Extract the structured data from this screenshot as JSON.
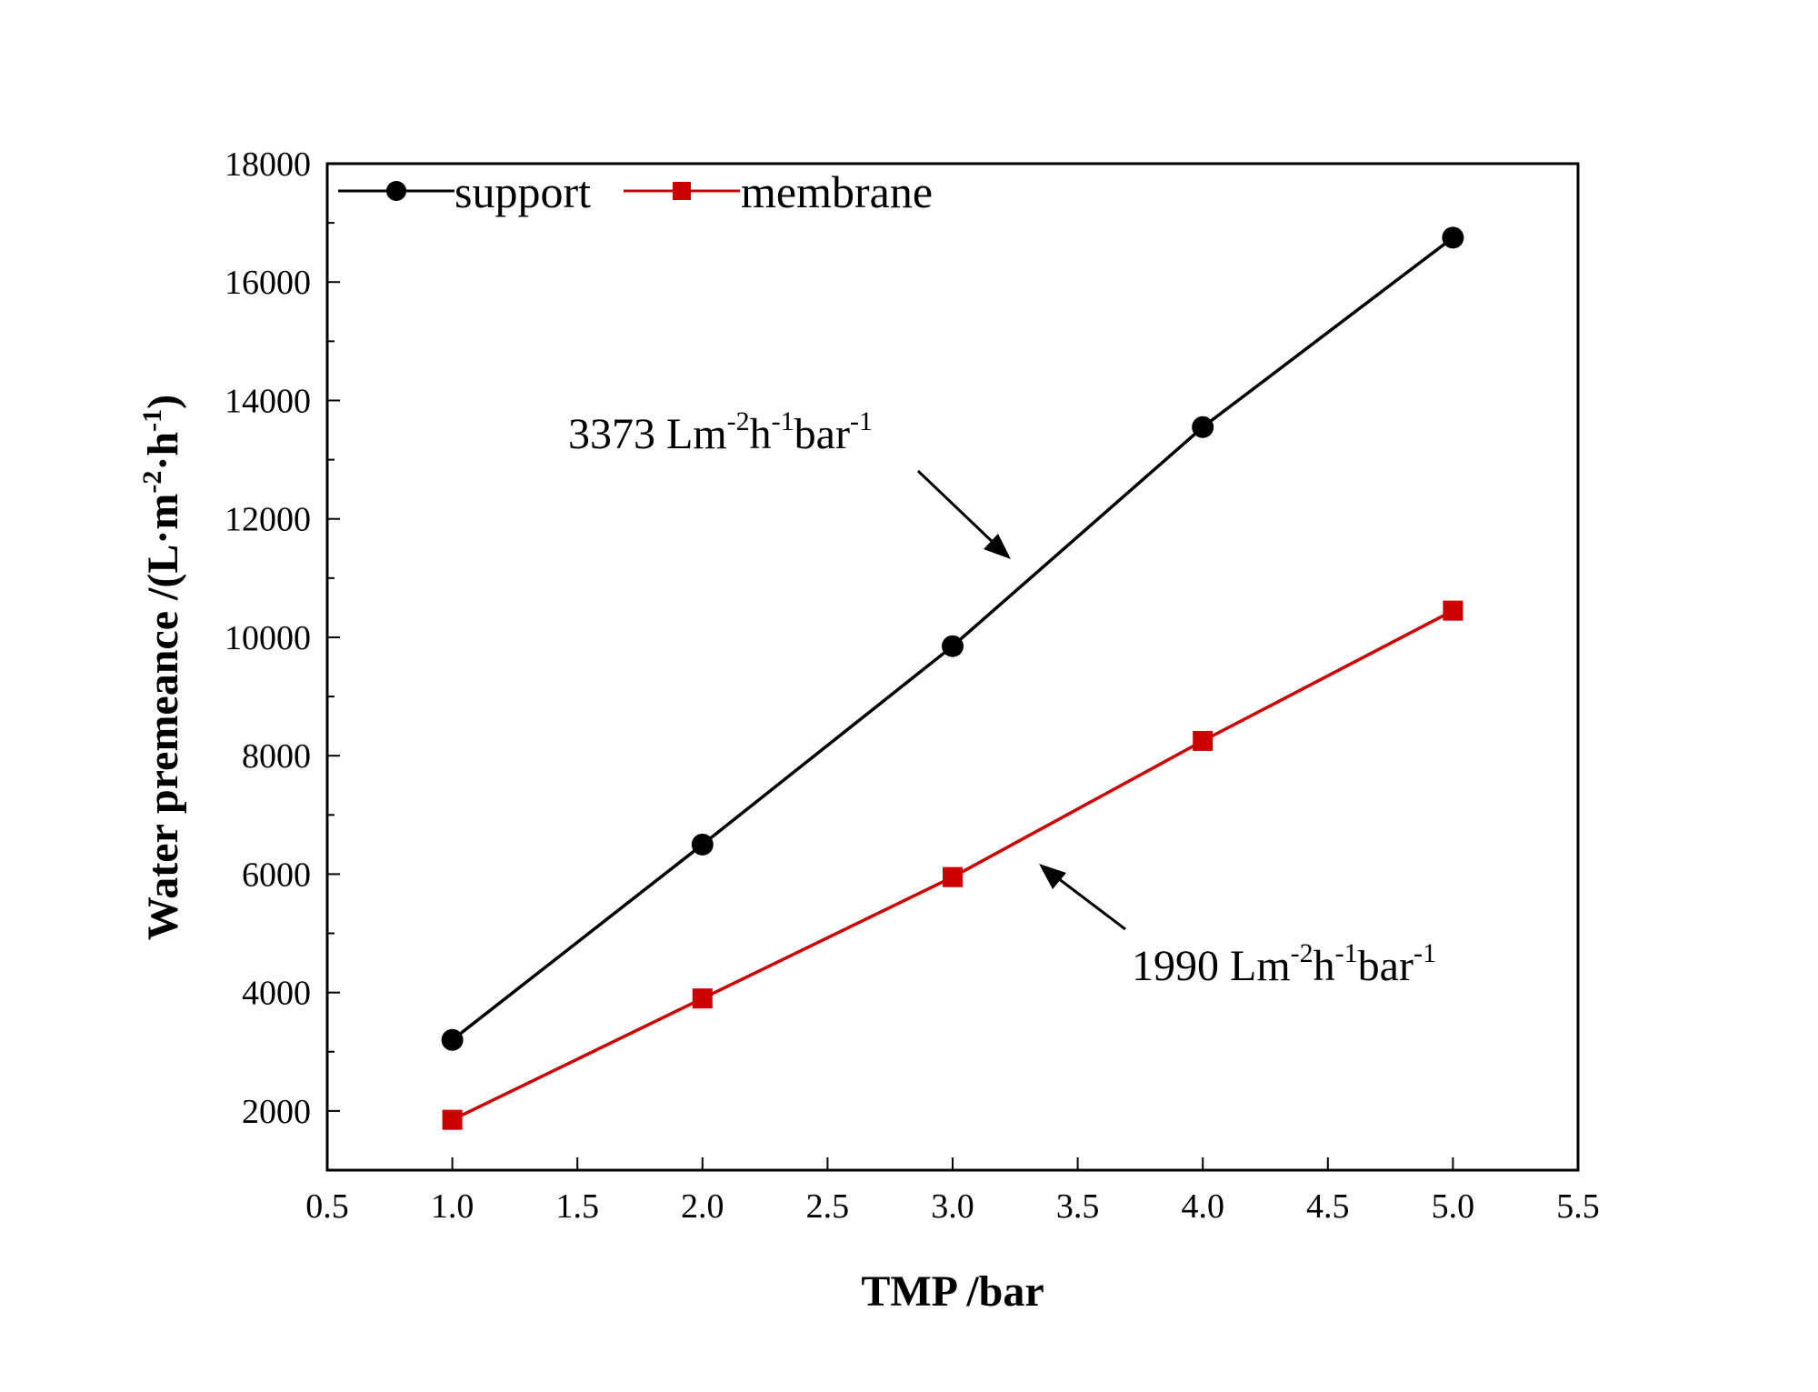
{
  "chart_data": {
    "type": "line",
    "xlabel": "TMP /bar",
    "ylabel_main": "Water premeance /(L·m",
    "ylabel_sup1": "-2",
    "ylabel_mid": "·h",
    "ylabel_sup2": "-1",
    "ylabel_end": ")",
    "xlim": [
      0.5,
      5.5
    ],
    "ylim": [
      1000,
      18000
    ],
    "xticks": [
      0.5,
      1.0,
      1.5,
      2.0,
      2.5,
      3.0,
      3.5,
      4.0,
      4.5,
      5.0,
      5.5
    ],
    "xtick_labels": [
      "0.5",
      "1.0",
      "1.5",
      "2.0",
      "2.5",
      "3.0",
      "3.5",
      "4.0",
      "4.5",
      "5.0",
      "5.5"
    ],
    "yticks": [
      2000,
      4000,
      6000,
      8000,
      10000,
      12000,
      14000,
      16000,
      18000
    ],
    "ytick_labels": [
      "2000",
      "4000",
      "6000",
      "8000",
      "10000",
      "12000",
      "14000",
      "16000",
      "18000"
    ],
    "series": [
      {
        "name": "support",
        "marker": "circle",
        "color": "#000000",
        "x": [
          1,
          2,
          3,
          4,
          5
        ],
        "values": [
          3200,
          6500,
          9850,
          13550,
          16750
        ]
      },
      {
        "name": "membrane",
        "marker": "square",
        "color": "#cc0000",
        "x": [
          1,
          2,
          3,
          4,
          5
        ],
        "values": [
          1850,
          3900,
          5950,
          8250,
          10450
        ]
      }
    ],
    "annotations": [
      {
        "for": "support",
        "value": "3373",
        "unit": " Lm",
        "sup1": "-2",
        "mid": "h",
        "sup2": "-1",
        "end": "bar",
        "sup3": "-1"
      },
      {
        "for": "membrane",
        "value": "1990",
        "unit": " Lm",
        "sup1": "-2",
        "mid": "h",
        "sup2": "-1",
        "end": "bar",
        "sup3": "-1"
      }
    ]
  }
}
